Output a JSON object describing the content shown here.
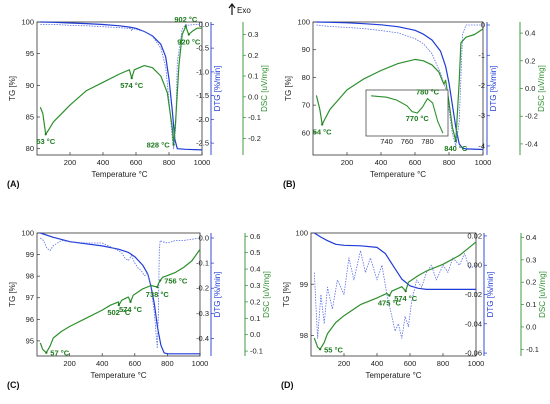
{
  "figure": {
    "exo_label": "Exo",
    "colors": {
      "tg": "#1f3bd6",
      "dtg": "#5a6ee8",
      "dsc": "#2d8f2d",
      "axis": "#222222",
      "annotation": "#1d7a1d"
    }
  },
  "chart_data": [
    {
      "panel": "(A)",
      "type": "line",
      "xlabel": "Temperature °C",
      "xlim": [
        0,
        1000
      ],
      "xticks": [
        200,
        400,
        600,
        800,
        1000
      ],
      "y_tg": {
        "label": "TG [%]",
        "lim": [
          79,
          100
        ],
        "ticks": [
          80,
          85,
          90,
          95,
          100
        ]
      },
      "y_dtg": {
        "label": "DTG [%/min]",
        "lim": [
          -2.75,
          0.05
        ],
        "ticks": [
          0.0,
          -0.5,
          -1.0,
          -1.5,
          -2.0,
          -2.5
        ],
        "tick_labels": [
          "0.0",
          "-0.5",
          "-1.0",
          "-1.5",
          "-2.0",
          "-2.5"
        ]
      },
      "y_dsc": {
        "label": "DSC [uV/mg]",
        "lim": [
          -0.28,
          0.36
        ],
        "ticks": [
          0.3,
          0.2,
          0.1,
          0.0,
          -0.1,
          -0.2
        ],
        "tick_labels": [
          "0.3",
          "0.2",
          "0.1",
          "0.0",
          "-0.1",
          "-0.2"
        ]
      },
      "series": [
        {
          "key": "tg",
          "x": [
            20,
            100,
            200,
            300,
            400,
            500,
            560,
            600,
            650,
            700,
            750,
            780,
            800,
            820,
            835,
            850,
            900,
            1000
          ],
          "y": [
            100,
            99.95,
            99.85,
            99.75,
            99.6,
            99.4,
            99.2,
            99.0,
            98.5,
            97.8,
            96.5,
            94.5,
            91.0,
            86.0,
            81.5,
            80.0,
            79.9,
            79.8
          ]
        },
        {
          "key": "dtg",
          "x": [
            20,
            100,
            200,
            300,
            400,
            500,
            570,
            574,
            580,
            650,
            700,
            750,
            780,
            800,
            820,
            828,
            840,
            850,
            880,
            902,
            920,
            950,
            1000
          ],
          "y": [
            0,
            0,
            -0.02,
            -0.03,
            -0.05,
            -0.07,
            -0.09,
            -0.14,
            -0.09,
            -0.15,
            -0.25,
            -0.5,
            -0.9,
            -1.6,
            -2.4,
            -2.62,
            -2.2,
            -0.8,
            -0.1,
            0,
            -0.02,
            0,
            0
          ]
        },
        {
          "key": "dsc",
          "x": [
            20,
            35,
            53,
            70,
            100,
            150,
            200,
            300,
            400,
            500,
            560,
            574,
            590,
            650,
            700,
            750,
            790,
            820,
            828,
            840,
            860,
            880,
            902,
            912,
            920,
            940,
            970,
            1000
          ],
          "y": [
            -0.05,
            -0.08,
            -0.18,
            -0.16,
            -0.12,
            -0.08,
            -0.04,
            0.03,
            0.07,
            0.11,
            0.13,
            0.09,
            0.13,
            0.15,
            0.14,
            0.1,
            0.02,
            -0.15,
            -0.23,
            -0.12,
            0.15,
            0.3,
            0.34,
            0.315,
            0.3,
            0.315,
            0.33,
            0.33
          ]
        }
      ],
      "annotations": [
        {
          "text": "53 °C",
          "x": 53,
          "y": -0.18,
          "on": "dsc",
          "pos": "below"
        },
        {
          "text": "574 °C",
          "x": 574,
          "y": 0.09,
          "on": "dsc",
          "pos": "below"
        },
        {
          "text": "828 °C",
          "x": 828,
          "y": -0.23,
          "on": "dsc",
          "pos": "left"
        },
        {
          "text": "902 °C",
          "x": 902,
          "y": 0.34,
          "on": "dsc",
          "pos": "above"
        },
        {
          "text": "920 °C",
          "x": 920,
          "y": 0.3,
          "on": "dsc",
          "pos": "below"
        }
      ]
    },
    {
      "panel": "(B)",
      "type": "line",
      "xlabel": "Temperature °C",
      "xlim": [
        0,
        1000
      ],
      "xticks": [
        200,
        400,
        600,
        800,
        1000
      ],
      "y_tg": {
        "label": "TG [%]",
        "lim": [
          52,
          100
        ],
        "ticks": [
          60,
          70,
          80,
          90,
          100
        ]
      },
      "y_dtg": {
        "label": "DTG [%/min]",
        "lim": [
          -4.3,
          0.1
        ],
        "ticks": [
          0,
          -1,
          -2,
          -3,
          -4
        ],
        "tick_labels": [
          "0",
          "-1",
          "-2",
          "-3",
          "-4"
        ]
      },
      "y_dsc": {
        "label": "DSC [uV/mg]",
        "lim": [
          -0.48,
          0.48
        ],
        "ticks": [
          0.4,
          0.2,
          0.0,
          -0.2,
          -0.4
        ],
        "tick_labels": [
          "0.4",
          "0.2",
          "0.0",
          "-0.2",
          "-0.4"
        ]
      },
      "series": [
        {
          "key": "tg",
          "x": [
            20,
            100,
            200,
            300,
            400,
            500,
            600,
            650,
            700,
            750,
            780,
            800,
            820,
            840,
            860,
            880,
            900,
            1000
          ],
          "y": [
            100,
            99.9,
            99.7,
            99.4,
            99.0,
            98.3,
            97.0,
            95.6,
            93.5,
            89.5,
            84,
            78,
            70,
            62,
            56,
            54.5,
            54.2,
            54
          ]
        },
        {
          "key": "dtg",
          "x": [
            20,
            100,
            200,
            300,
            400,
            500,
            600,
            650,
            700,
            750,
            780,
            800,
            820,
            840,
            860,
            880,
            900,
            1000
          ],
          "y": [
            0,
            -0.05,
            -0.08,
            -0.12,
            -0.18,
            -0.26,
            -0.45,
            -0.62,
            -0.95,
            -1.6,
            -2.1,
            -2.8,
            -3.6,
            -4.0,
            -3.2,
            -0.3,
            0,
            0
          ]
        },
        {
          "key": "dsc",
          "x": [
            20,
            40,
            54,
            70,
            100,
            150,
            200,
            300,
            400,
            500,
            600,
            650,
            700,
            740,
            770,
            780,
            790,
            800,
            820,
            840,
            860,
            870,
            900,
            950,
            1000
          ],
          "y": [
            -0.05,
            -0.15,
            -0.26,
            -0.22,
            -0.15,
            -0.08,
            -0.01,
            0.07,
            0.13,
            0.18,
            0.21,
            0.2,
            0.17,
            0.12,
            0.03,
            0.06,
            -0.02,
            -0.1,
            -0.28,
            -0.38,
            0.05,
            0.33,
            0.37,
            0.39,
            0.43
          ]
        }
      ],
      "inset": {
        "xlim": [
          720,
          800
        ],
        "xticks": [
          740,
          760,
          780
        ],
        "x": [
          725,
          740,
          750,
          760,
          765,
          770,
          775,
          780,
          785,
          790,
          795
        ],
        "y": [
          0.6,
          0.55,
          0.45,
          0.25,
          0.05,
          0.0,
          0.2,
          0.5,
          0.35,
          -0.3,
          -0.7
        ],
        "annotations": [
          {
            "text": "780 °C",
            "x": 780,
            "y": 0.5,
            "pos": "above"
          },
          {
            "text": "770 °C",
            "x": 770,
            "y": 0.0,
            "pos": "below"
          }
        ]
      },
      "annotations": [
        {
          "text": "54 °C",
          "x": 54,
          "y": -0.26,
          "on": "dsc",
          "pos": "below"
        },
        {
          "text": "840 °C",
          "x": 840,
          "y": -0.38,
          "on": "dsc",
          "pos": "below"
        }
      ]
    },
    {
      "panel": "(C)",
      "type": "line",
      "xlabel": "Temperature °C",
      "xlim": [
        0,
        1000
      ],
      "xticks": [
        200,
        400,
        600,
        800,
        1000
      ],
      "y_tg": {
        "label": "TG [%]",
        "lim": [
          94.3,
          100
        ],
        "ticks": [
          95,
          96,
          97,
          98,
          99,
          100
        ]
      },
      "y_dtg": {
        "label": "DTG [%/min]",
        "lim": [
          -0.47,
          0.02
        ],
        "ticks": [
          0.0,
          -0.1,
          -0.2,
          -0.3,
          -0.4
        ],
        "tick_labels": [
          "0.0",
          "-0.1",
          "-0.2",
          "-0.3",
          "-0.4"
        ]
      },
      "y_dsc": {
        "label": "DSC [uV/mg]",
        "lim": [
          -0.13,
          0.62
        ],
        "ticks": [
          0.6,
          0.5,
          0.4,
          0.3,
          0.2,
          0.1,
          0.0,
          -0.1
        ],
        "tick_labels": [
          "0.6",
          "0.5",
          "0.4",
          "0.3",
          "0.2",
          "0.1",
          "0.0",
          "-0.1"
        ]
      },
      "series": [
        {
          "key": "tg",
          "x": [
            20,
            100,
            200,
            300,
            400,
            500,
            560,
            600,
            650,
            680,
            700,
            720,
            740,
            760,
            780,
            800,
            850,
            900,
            1000
          ],
          "y": [
            100,
            99.8,
            99.6,
            99.5,
            99.4,
            99.25,
            99.1,
            98.9,
            98.5,
            98.1,
            97.5,
            96.7,
            95.6,
            94.8,
            94.45,
            94.4,
            94.4,
            94.4,
            94.4
          ]
        },
        {
          "key": "dtg",
          "x": [
            20,
            40,
            60,
            80,
            100,
            150,
            200,
            300,
            400,
            450,
            500,
            520,
            540,
            560,
            580,
            600,
            620,
            640,
            660,
            680,
            700,
            720,
            738,
            745,
            750,
            756,
            770,
            800,
            850,
            900,
            1000
          ],
          "y": [
            0,
            -0.01,
            -0.04,
            -0.05,
            -0.03,
            -0.01,
            -0.015,
            -0.02,
            -0.02,
            -0.035,
            -0.05,
            -0.06,
            -0.08,
            -0.09,
            -0.07,
            -0.1,
            -0.12,
            -0.13,
            -0.15,
            -0.14,
            -0.2,
            -0.3,
            -0.44,
            -0.3,
            -0.05,
            -0.01,
            -0.015,
            -0.02,
            -0.01,
            -0.01,
            0
          ]
        },
        {
          "key": "dsc",
          "x": [
            20,
            35,
            57,
            80,
            100,
            150,
            200,
            300,
            400,
            450,
            500,
            502,
            520,
            560,
            574,
            590,
            650,
            700,
            738,
            745,
            756,
            770,
            800,
            850,
            900,
            950,
            1000
          ],
          "y": [
            -0.05,
            -0.09,
            -0.11,
            -0.07,
            -0.02,
            0.02,
            0.05,
            0.1,
            0.15,
            0.18,
            0.2,
            0.18,
            0.21,
            0.23,
            0.2,
            0.24,
            0.28,
            0.3,
            0.29,
            0.31,
            0.33,
            0.35,
            0.36,
            0.38,
            0.41,
            0.45,
            0.52
          ]
        }
      ],
      "annotations": [
        {
          "text": "57 °C",
          "x": 57,
          "y": -0.11,
          "on": "dsc",
          "pos": "right"
        },
        {
          "text": "502 °C",
          "x": 502,
          "y": 0.18,
          "on": "dsc",
          "pos": "below"
        },
        {
          "text": "574 °C",
          "x": 574,
          "y": 0.2,
          "on": "dsc",
          "pos": "below"
        },
        {
          "text": "738 °C",
          "x": 738,
          "y": 0.29,
          "on": "dsc",
          "pos": "below"
        },
        {
          "text": "756 °C",
          "x": 756,
          "y": 0.33,
          "on": "dsc",
          "pos": "right"
        }
      ]
    },
    {
      "panel": "(D)",
      "type": "line",
      "xlabel": "Temperature °C",
      "xlim": [
        0,
        1000
      ],
      "xticks": [
        200,
        400,
        600,
        800,
        1000
      ],
      "y_tg": {
        "label": "TG [%]",
        "lim": [
          97.6,
          100
        ],
        "ticks": [
          98,
          99,
          100
        ]
      },
      "y_dtg": {
        "label": "DTG [%/min]",
        "lim": [
          -0.062,
          0.022
        ],
        "ticks": [
          0.02,
          0.0,
          -0.02,
          -0.04,
          -0.06
        ],
        "tick_labels": [
          "0.02",
          "0.00",
          "-0.02",
          "-0.04",
          "-0.06"
        ]
      },
      "y_dsc": {
        "label": "DSC [uV/mg]",
        "lim": [
          -0.13,
          0.42
        ],
        "ticks": [
          0.4,
          0.3,
          0.2,
          0.1,
          0.0,
          -0.1
        ],
        "tick_labels": [
          "0.4",
          "0.3",
          "0.2",
          "0.1",
          "0.0",
          "-0.1"
        ]
      },
      "series": [
        {
          "key": "tg",
          "x": [
            20,
            60,
            100,
            150,
            200,
            300,
            400,
            450,
            500,
            550,
            600,
            650,
            700,
            800,
            900,
            1000
          ],
          "y": [
            100,
            99.92,
            99.85,
            99.78,
            99.76,
            99.75,
            99.72,
            99.6,
            99.35,
            99.1,
            98.97,
            98.92,
            98.9,
            98.9,
            98.9,
            98.9
          ]
        },
        {
          "key": "dtg",
          "x": [
            20,
            40,
            60,
            80,
            100,
            130,
            160,
            200,
            230,
            260,
            300,
            330,
            360,
            400,
            430,
            460,
            490,
            510,
            530,
            550,
            570,
            590,
            610,
            640,
            670,
            700,
            730,
            760,
            800,
            830,
            860,
            900,
            930,
            960,
            1000
          ],
          "y": [
            -0.005,
            -0.05,
            -0.02,
            -0.04,
            -0.015,
            -0.03,
            -0.01,
            -0.02,
            0.005,
            -0.01,
            0.01,
            -0.005,
            0.005,
            -0.01,
            0.0,
            -0.02,
            -0.035,
            -0.045,
            -0.04,
            -0.05,
            -0.035,
            -0.042,
            -0.025,
            -0.01,
            -0.015,
            -0.005,
            0.0,
            -0.01,
            0.0,
            -0.005,
            0.005,
            0.0,
            0.008,
            -0.002,
            0.0
          ]
        },
        {
          "key": "dsc",
          "x": [
            20,
            40,
            55,
            80,
            100,
            150,
            200,
            300,
            400,
            460,
            475,
            490,
            550,
            574,
            590,
            650,
            700,
            800,
            900,
            950,
            1000
          ],
          "y": [
            -0.05,
            -0.09,
            -0.1,
            -0.07,
            -0.03,
            0.02,
            0.05,
            0.1,
            0.13,
            0.15,
            0.14,
            0.16,
            0.18,
            0.16,
            0.2,
            0.23,
            0.25,
            0.28,
            0.32,
            0.35,
            0.38
          ]
        }
      ],
      "annotations": [
        {
          "text": "55 °C",
          "x": 55,
          "y": -0.1,
          "on": "dsc",
          "pos": "right"
        },
        {
          "text": "475 °C",
          "x": 475,
          "y": 0.14,
          "on": "dsc",
          "pos": "below"
        },
        {
          "text": "574 °C",
          "x": 574,
          "y": 0.16,
          "on": "dsc",
          "pos": "below"
        }
      ]
    }
  ]
}
